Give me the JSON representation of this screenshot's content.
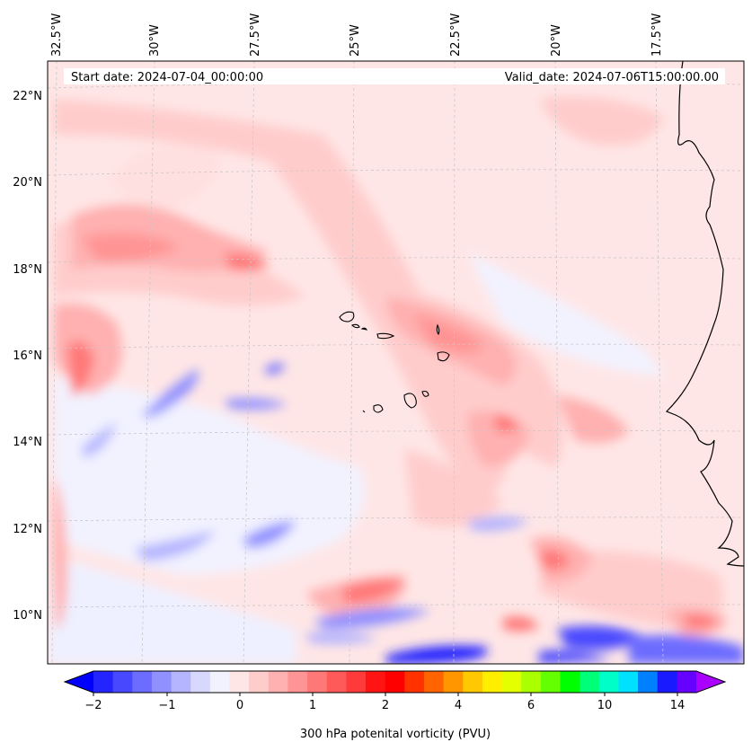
{
  "header": {
    "start_date": "Start date: 2024-07-04_00:00:00",
    "valid_date": "Valid_date: 2024-07-06T15:00:00.00"
  },
  "axes": {
    "lon_labels": [
      "32.5°W",
      "30°W",
      "27.5°W",
      "25°W",
      "22.5°W",
      "20°W",
      "17.5°W"
    ],
    "lat_labels": [
      "22°N",
      "20°N",
      "18°N",
      "16°N",
      "14°N",
      "12°N",
      "10°N"
    ]
  },
  "colorbar": {
    "label": "300 hPa potenital vorticity (PVU)",
    "ticks": [
      "−2",
      "−1",
      "0",
      "1",
      "2",
      "4",
      "6",
      "10",
      "14"
    ],
    "colors": [
      "#0000ff",
      "#2424ff",
      "#4848ff",
      "#6c6cff",
      "#9090ff",
      "#b4b4ff",
      "#d8d8ff",
      "#f2f2ff",
      "#ffe6e6",
      "#ffcccc",
      "#ffb0b0",
      "#ff9494",
      "#ff7878",
      "#ff5a5a",
      "#ff3a3a",
      "#ff1414",
      "#ff0000",
      "#ff3200",
      "#ff6400",
      "#ff9600",
      "#ffc800",
      "#ffee00",
      "#e4ff00",
      "#aaff00",
      "#64ff00",
      "#00ff00",
      "#00ff78",
      "#00ffc8",
      "#00e0ff",
      "#0080ff",
      "#1a1aff",
      "#6600ff",
      "#aa00ff"
    ]
  },
  "chart_data": {
    "type": "heatmap",
    "variable": "300 hPa potenital vorticity (PVU)",
    "units": "PVU",
    "lon_range": [
      -33,
      -15
    ],
    "lat_range": [
      9,
      22.8
    ],
    "levels": [
      -2,
      -1,
      0,
      1,
      2,
      4,
      6,
      10,
      14
    ],
    "features": [
      {
        "name": "Cape Verde Islands",
        "lat": 16,
        "lon": -24
      },
      {
        "name": "West African coast",
        "lon_range": [
          -17.5,
          -15
        ]
      }
    ]
  }
}
